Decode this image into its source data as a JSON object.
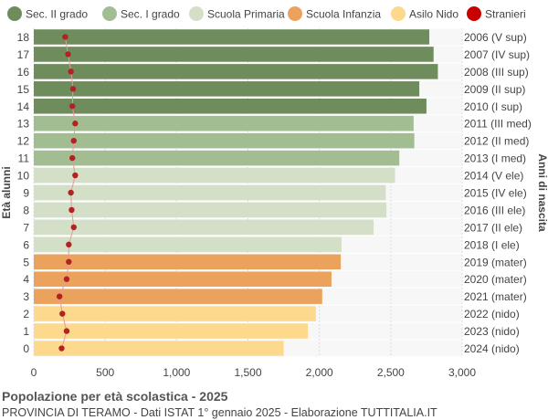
{
  "chart_data": {
    "type": "bar",
    "orientation": "horizontal",
    "ylabel_left": "Età alunni",
    "ylabel_right": "Anni di nascita",
    "xlim": [
      0,
      3000
    ],
    "xticks": [
      0,
      500,
      1000,
      1500,
      2000,
      2500,
      3000
    ],
    "xtick_labels": [
      "0",
      "500",
      "1,000",
      "1,500",
      "2,000",
      "2,500",
      "3,000"
    ],
    "grid": "vertical",
    "legend": {
      "position": "top",
      "items": [
        {
          "key": "sec2",
          "label": "Sec. II grado",
          "color": "#6e8c5c",
          "marker": "circle"
        },
        {
          "key": "sec1",
          "label": "Sec. I grado",
          "color": "#a3bd93",
          "marker": "circle"
        },
        {
          "key": "prim",
          "label": "Scuola Primaria",
          "color": "#d3dfc6",
          "marker": "circle"
        },
        {
          "key": "inf",
          "label": "Scuola Infanzia",
          "color": "#eba25c",
          "marker": "circle"
        },
        {
          "key": "nido",
          "label": "Asilo Nido",
          "color": "#fdd98e",
          "marker": "circle"
        },
        {
          "key": "stranieri",
          "label": "Stranieri",
          "color": "#c80000",
          "marker": "circle"
        }
      ]
    },
    "rows": [
      {
        "age": "18",
        "year": "2006 (V sup)",
        "value": 2770,
        "group": "sec2",
        "stranieri": 220
      },
      {
        "age": "17",
        "year": "2007 (IV sup)",
        "value": 2800,
        "group": "sec2",
        "stranieri": 240
      },
      {
        "age": "16",
        "year": "2008 (III sup)",
        "value": 2830,
        "group": "sec2",
        "stranieri": 260
      },
      {
        "age": "15",
        "year": "2009 (II sup)",
        "value": 2700,
        "group": "sec2",
        "stranieri": 275
      },
      {
        "age": "14",
        "year": "2010 (I sup)",
        "value": 2750,
        "group": "sec2",
        "stranieri": 270
      },
      {
        "age": "13",
        "year": "2011 (III med)",
        "value": 2660,
        "group": "sec1",
        "stranieri": 290
      },
      {
        "age": "12",
        "year": "2012 (II med)",
        "value": 2665,
        "group": "sec1",
        "stranieri": 280
      },
      {
        "age": "11",
        "year": "2013 (I med)",
        "value": 2560,
        "group": "sec1",
        "stranieri": 270
      },
      {
        "age": "10",
        "year": "2014 (V ele)",
        "value": 2530,
        "group": "prim",
        "stranieri": 290
      },
      {
        "age": "9",
        "year": "2015 (IV ele)",
        "value": 2465,
        "group": "prim",
        "stranieri": 260
      },
      {
        "age": "8",
        "year": "2016 (III ele)",
        "value": 2470,
        "group": "prim",
        "stranieri": 265
      },
      {
        "age": "7",
        "year": "2017 (II ele)",
        "value": 2380,
        "group": "prim",
        "stranieri": 280
      },
      {
        "age": "6",
        "year": "2018 (I ele)",
        "value": 2155,
        "group": "prim",
        "stranieri": 245
      },
      {
        "age": "5",
        "year": "2019 (mater)",
        "value": 2150,
        "group": "inf",
        "stranieri": 245
      },
      {
        "age": "4",
        "year": "2020 (mater)",
        "value": 2085,
        "group": "inf",
        "stranieri": 230
      },
      {
        "age": "3",
        "year": "2021 (mater)",
        "value": 2020,
        "group": "inf",
        "stranieri": 180
      },
      {
        "age": "2",
        "year": "2022 (nido)",
        "value": 1975,
        "group": "nido",
        "stranieri": 200
      },
      {
        "age": "1",
        "year": "2023 (nido)",
        "value": 1920,
        "group": "nido",
        "stranieri": 230
      },
      {
        "age": "0",
        "year": "2024 (nido)",
        "value": 1750,
        "group": "nido",
        "stranieri": 195
      }
    ],
    "title": "Popolazione per età scolastica - 2025",
    "subtitle": "PROVINCIA DI TERAMO - Dati ISTAT 1° gennaio 2025 - Elaborazione TUTTITALIA.IT"
  }
}
